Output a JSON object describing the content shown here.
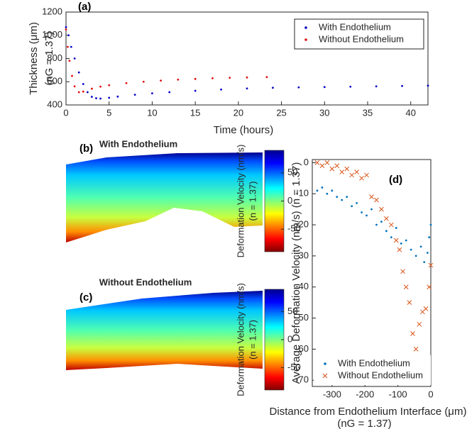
{
  "chart_data": [
    {
      "type": "scatter",
      "panel_label": "(a)",
      "xlabel": "Time (hours)",
      "ylabel": [
        "Thickness (μm)",
        "(nG = 1.37)"
      ],
      "xlim": [
        0,
        42
      ],
      "xticks": [
        0,
        5,
        10,
        15,
        20,
        25,
        30,
        35,
        40
      ],
      "ylim": [
        400,
        1200
      ],
      "yticks": [
        400,
        600,
        800,
        1000,
        1200
      ],
      "legend": "upper right",
      "series": [
        {
          "name": "With Endothelium",
          "color": "#0000c8",
          "marker": "dot",
          "x": [
            0,
            0.3,
            0.6,
            1,
            1.5,
            2,
            2.5,
            3,
            3.5,
            4,
            5,
            6,
            8,
            10,
            12,
            15,
            18,
            21,
            24,
            27,
            30,
            33,
            36,
            39,
            42
          ],
          "values": [
            1070,
            1000,
            900,
            800,
            680,
            580,
            510,
            470,
            458,
            455,
            462,
            472,
            488,
            500,
            510,
            522,
            533,
            542,
            548,
            551,
            554,
            557,
            560,
            563,
            566
          ]
        },
        {
          "name": "Without Endothelium",
          "color": "#e01010",
          "marker": "dot",
          "x": [
            0,
            0.2,
            0.4,
            0.7,
            1,
            1.5,
            2,
            3,
            4,
            5,
            7,
            9,
            11,
            13,
            15,
            17,
            19,
            21,
            23.3
          ],
          "values": [
            1050,
            900,
            780,
            650,
            560,
            510,
            515,
            540,
            558,
            570,
            588,
            600,
            610,
            618,
            624,
            630,
            634,
            637,
            640
          ]
        }
      ]
    },
    {
      "type": "heatmap",
      "panel_label": "(b)",
      "title": "With Endothelium",
      "colorbar_label": [
        "Deformation Velocity (nm/s)",
        "(n = 1.37)"
      ],
      "clim": [
        -90,
        90
      ],
      "cticks": [
        -50,
        0,
        50
      ]
    },
    {
      "type": "heatmap",
      "panel_label": "(c)",
      "title": "Without Endothelium",
      "colorbar_label": [
        "Deformation Velocity (nm/s)",
        "(n = 1.37)"
      ],
      "clim": [
        -90,
        90
      ],
      "cticks": [
        -50,
        0,
        50
      ]
    },
    {
      "type": "scatter",
      "panel_label": "(d)",
      "xlabel": [
        "Distance from Endothelium Interface (μm)",
        "(nG = 1.37)"
      ],
      "ylabel": "Average Deformation Velocity (nm/s) (n = 1.37)",
      "xlim": [
        -360,
        0
      ],
      "xticks": [
        -300,
        -200,
        -100,
        0
      ],
      "ylim": [
        -72,
        1
      ],
      "yticks": [
        -70,
        -60,
        -50,
        -40,
        -30,
        -20,
        -10,
        0
      ],
      "legend": "lower left",
      "series": [
        {
          "name": "With Endothelium",
          "color": "#0072bd",
          "marker": "dot",
          "x": [
            -345,
            -330,
            -315,
            -300,
            -285,
            -270,
            -255,
            -240,
            -225,
            -210,
            -195,
            -180,
            -165,
            -150,
            -135,
            -120,
            -105,
            -90,
            -75,
            -60,
            -45,
            -30,
            -20,
            -10,
            -5,
            0
          ],
          "values": [
            -9,
            -8,
            -10,
            -9,
            -11,
            -12,
            -11,
            -14,
            -13,
            -16,
            -17,
            -15,
            -20,
            -19,
            -22,
            -24,
            -21,
            -26,
            -25,
            -28,
            -30,
            -27,
            -32,
            -29,
            -24,
            -20
          ]
        },
        {
          "name": "Without Endothelium",
          "color": "#d95319",
          "marker": "x",
          "x": [
            -345,
            -330,
            -315,
            -300,
            -285,
            -270,
            -255,
            -240,
            -225,
            -210,
            -195,
            -180,
            -165,
            -150,
            -135,
            -120,
            -105,
            -95,
            -85,
            -75,
            -65,
            -55,
            -45,
            -35,
            -25,
            -15,
            -5,
            0
          ],
          "values": [
            0,
            -1,
            0,
            -2,
            -1,
            -3,
            -2,
            -4,
            -3,
            -5,
            -4,
            -11,
            -12,
            -15,
            -18,
            -20,
            -25,
            -28,
            -35,
            -40,
            -45,
            -55,
            -60,
            -52,
            -48,
            -47,
            -40,
            -33
          ]
        }
      ]
    }
  ]
}
